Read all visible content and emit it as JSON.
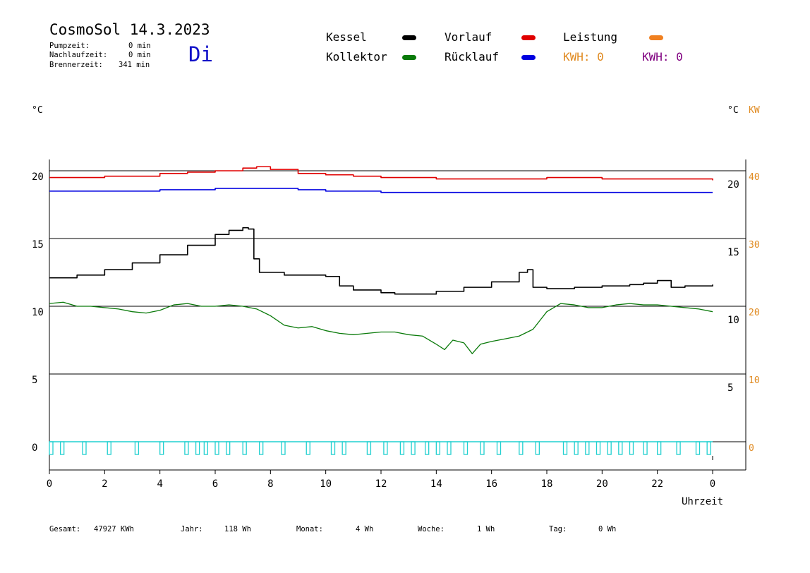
{
  "header": {
    "title": "CosmoSol 14.3.2023",
    "weekday": "Di",
    "pumpzeit_label": "Pumpzeit:",
    "pumpzeit_value": "0 min",
    "nachlaufzeit_label": "Nachlaufzeit:",
    "nachlaufzeit_value": "0 min",
    "brennerzeit_label": "Brennerzeit:",
    "brennerzeit_value": "341 min"
  },
  "legend": {
    "kessel": "Kessel",
    "kollektor": "Kollektor",
    "vorlauf": "Vorlauf",
    "ruecklauf": "Rücklauf",
    "leistung": "Leistung",
    "kwh_1": "KWH: 0",
    "kwh_2": "KWH: 0"
  },
  "colors": {
    "kessel": "#000000",
    "kollektor": "#0a7a0a",
    "vorlauf": "#e00000",
    "ruecklauf": "#0000e0",
    "leistung": "#f08020",
    "kwh_purple": "#800080",
    "pump": "#20d0d0"
  },
  "footer": {
    "gesamt_label": "Gesamt:",
    "gesamt_value": "47927 KWh",
    "jahr_label": "Jahr:",
    "jahr_value": "118 Wh",
    "monat_label": "Monat:",
    "monat_value": "4 Wh",
    "woche_label": "Woche:",
    "woche_value": "1 Wh",
    "tag_label": "Tag:",
    "tag_value": "0 Wh"
  },
  "chart_data": {
    "type": "line",
    "xlabel": "Uhrzeit",
    "x_ticks": [
      "0",
      "2",
      "4",
      "6",
      "8",
      "10",
      "12",
      "14",
      "16",
      "18",
      "20",
      "22",
      "0"
    ],
    "y_left_label": "°C",
    "y_left_ticks": [
      "0",
      "5",
      "10",
      "15",
      "20"
    ],
    "y_right_label": "°C",
    "y_right_ticks": [
      "5",
      "10",
      "15",
      "20"
    ],
    "y_right2_label": "KW",
    "y_right2_ticks": [
      "0",
      "10",
      "20",
      "30",
      "40"
    ],
    "xlim": [
      0,
      24
    ],
    "ylim": [
      -1.5,
      21
    ],
    "grid": true,
    "series": [
      {
        "name": "Vorlauf",
        "x": [
          0,
          2,
          4,
          5,
          6,
          7,
          7.5,
          8,
          9,
          10,
          11,
          12,
          14,
          16,
          18,
          20,
          22,
          24
        ],
        "values": [
          19.5,
          19.6,
          19.8,
          19.9,
          20.0,
          20.2,
          20.3,
          20.1,
          19.8,
          19.7,
          19.6,
          19.5,
          19.4,
          19.4,
          19.5,
          19.4,
          19.4,
          19.3
        ]
      },
      {
        "name": "Rücklauf",
        "x": [
          0,
          2,
          4,
          6,
          7.5,
          9,
          10,
          11,
          12,
          14,
          16,
          18,
          20,
          22,
          24
        ],
        "values": [
          18.5,
          18.5,
          18.6,
          18.7,
          18.7,
          18.6,
          18.5,
          18.5,
          18.4,
          18.4,
          18.4,
          18.4,
          18.4,
          18.4,
          18.4
        ]
      },
      {
        "name": "Kessel",
        "x": [
          0,
          0.5,
          1,
          2,
          3,
          4,
          5,
          6,
          6.5,
          7,
          7.2,
          7.4,
          7.6,
          8,
          8.5,
          9,
          10,
          10.5,
          11,
          12,
          12.5,
          13,
          14,
          15,
          16,
          17,
          17.3,
          17.5,
          18,
          19,
          20,
          21,
          21.5,
          22,
          22.5,
          23,
          24
        ],
        "values": [
          12.1,
          12.1,
          12.3,
          12.7,
          13.2,
          13.8,
          14.5,
          15.3,
          15.6,
          15.8,
          15.7,
          13.5,
          12.5,
          12.5,
          12.3,
          12.3,
          12.2,
          11.5,
          11.2,
          11.0,
          10.9,
          10.9,
          11.1,
          11.4,
          11.8,
          12.5,
          12.7,
          11.4,
          11.3,
          11.4,
          11.5,
          11.6,
          11.7,
          11.9,
          11.4,
          11.5,
          11.6
        ]
      },
      {
        "name": "Kollektor",
        "x": [
          0,
          0.5,
          1,
          1.5,
          2,
          2.5,
          3,
          3.5,
          4,
          4.5,
          5,
          5.5,
          6,
          6.5,
          7,
          7.5,
          8,
          8.5,
          9,
          9.5,
          10,
          10.5,
          11,
          11.5,
          12,
          12.5,
          13,
          13.5,
          14,
          14.3,
          14.6,
          15,
          15.3,
          15.6,
          16,
          16.5,
          17,
          17.5,
          18,
          18.5,
          19,
          19.5,
          20,
          20.5,
          21,
          21.5,
          22,
          22.5,
          23,
          23.5,
          24
        ],
        "values": [
          10.2,
          10.3,
          10.0,
          10.0,
          9.9,
          9.8,
          9.6,
          9.5,
          9.7,
          10.1,
          10.2,
          10.0,
          10.0,
          10.1,
          10.0,
          9.8,
          9.3,
          8.6,
          8.4,
          8.5,
          8.2,
          8.0,
          7.9,
          8.0,
          8.1,
          8.1,
          7.9,
          7.8,
          7.2,
          6.8,
          7.5,
          7.3,
          6.5,
          7.2,
          7.4,
          7.6,
          7.8,
          8.3,
          9.6,
          10.2,
          10.1,
          9.9,
          9.9,
          10.1,
          10.2,
          10.1,
          10.1,
          10.0,
          9.9,
          9.8,
          9.6
        ]
      }
    ],
    "pump_pulses_hours": [
      0,
      0.4,
      1.2,
      2.1,
      3.1,
      4.0,
      4.9,
      5.3,
      5.6,
      6.0,
      6.4,
      7.0,
      7.6,
      8.4,
      9.3,
      10.2,
      10.6,
      11.5,
      12.1,
      12.7,
      13.1,
      13.6,
      14.0,
      14.4,
      15.0,
      15.6,
      16.2,
      17.0,
      17.6,
      18.6,
      19.0,
      19.4,
      19.8,
      20.2,
      20.6,
      21.0,
      21.5,
      22.0,
      22.7,
      23.4,
      23.8
    ],
    "pump_pulse_value": 0.5
  }
}
